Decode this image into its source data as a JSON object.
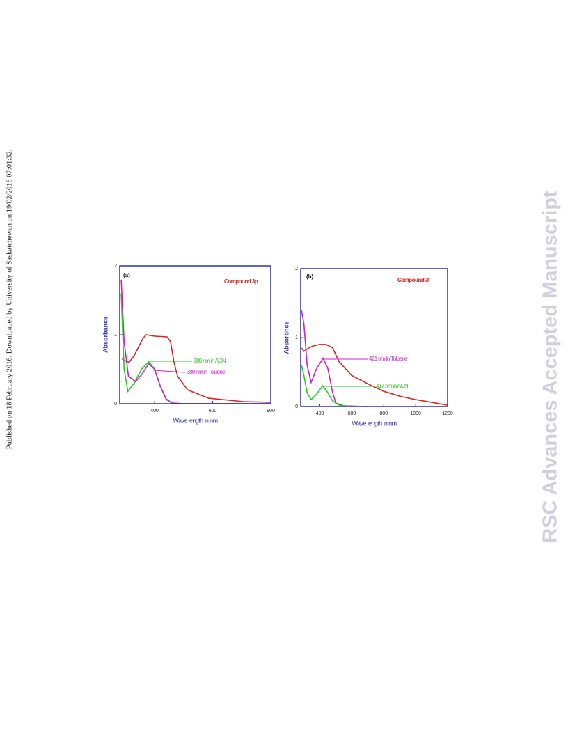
{
  "side_note": "Published on 18 February 2016. Downloaded by University of Saskatchewan on 19/02/2016 07:01:32.",
  "watermark": "RSC Advances Accepted Manuscript",
  "chart_data": [
    {
      "type": "line",
      "panel_label": "(a)",
      "annotation": "Compound 3p",
      "y_label": "Absorbance",
      "x_label": "Wave length in nm",
      "xlim": [
        280,
        800
      ],
      "ylim": [
        0,
        2
      ],
      "xticks": [
        400,
        600,
        800
      ],
      "yticks": [
        0,
        1,
        2
      ],
      "series": [
        {
          "color": "#dd2222",
          "x": [
            288,
            300,
            312,
            330,
            348,
            360,
            371,
            400,
            443,
            455,
            467,
            479,
            514,
            586,
            705,
            798
          ],
          "values": [
            0.65,
            0.62,
            0.6,
            0.7,
            0.85,
            0.95,
            1.0,
            0.98,
            0.97,
            0.9,
            0.6,
            0.4,
            0.2,
            0.08,
            0.03,
            0.02
          ]
        },
        {
          "name": "380 nm in ACN",
          "color": "#22cc22",
          "x": [
            285,
            295,
            308,
            330,
            355,
            380,
            400,
            420,
            440,
            460,
            500,
            800
          ],
          "values": [
            1.6,
            0.5,
            0.18,
            0.3,
            0.5,
            0.61,
            0.5,
            0.25,
            0.06,
            0.01,
            0,
            0
          ]
        },
        {
          "name": "380 nm in Toluene",
          "color": "#cc22cc",
          "x": [
            285,
            295,
            310,
            335,
            355,
            380,
            400,
            420,
            440,
            460,
            500,
            800
          ],
          "values": [
            1.8,
            0.9,
            0.4,
            0.32,
            0.42,
            0.58,
            0.5,
            0.25,
            0.07,
            0.01,
            0,
            0
          ]
        }
      ]
    },
    {
      "type": "line",
      "panel_label": "(b)",
      "annotation": "Compound 3t",
      "y_label": "Absorbnce",
      "x_label": "Wave length in nm",
      "xlim": [
        280,
        1200
      ],
      "ylim": [
        0,
        2
      ],
      "xticks": [
        400,
        600,
        800,
        1000,
        1200
      ],
      "yticks": [
        0,
        1,
        2
      ],
      "series": [
        {
          "color": "#dd2222",
          "x": [
            285,
            300,
            330,
            360,
            400,
            440,
            480,
            520,
            600,
            700,
            800,
            900,
            1000,
            1100,
            1200
          ],
          "values": [
            0.85,
            0.8,
            0.85,
            0.88,
            0.9,
            0.9,
            0.85,
            0.65,
            0.45,
            0.33,
            0.22,
            0.15,
            0.1,
            0.06,
            0.02
          ]
        },
        {
          "name": "421 nm in Toluene",
          "color": "#cc22cc",
          "x": [
            285,
            300,
            320,
            345,
            380,
            421,
            450,
            480,
            500,
            550,
            700
          ],
          "values": [
            1.4,
            1.2,
            0.6,
            0.35,
            0.55,
            0.7,
            0.55,
            0.2,
            0.05,
            0.01,
            0
          ]
        },
        {
          "name": "417 nm in ACN",
          "color": "#22cc22",
          "x": [
            285,
            300,
            320,
            345,
            380,
            417,
            450,
            480,
            520,
            600
          ],
          "values": [
            0.6,
            0.45,
            0.2,
            0.1,
            0.18,
            0.3,
            0.2,
            0.08,
            0.02,
            0
          ]
        }
      ]
    }
  ]
}
